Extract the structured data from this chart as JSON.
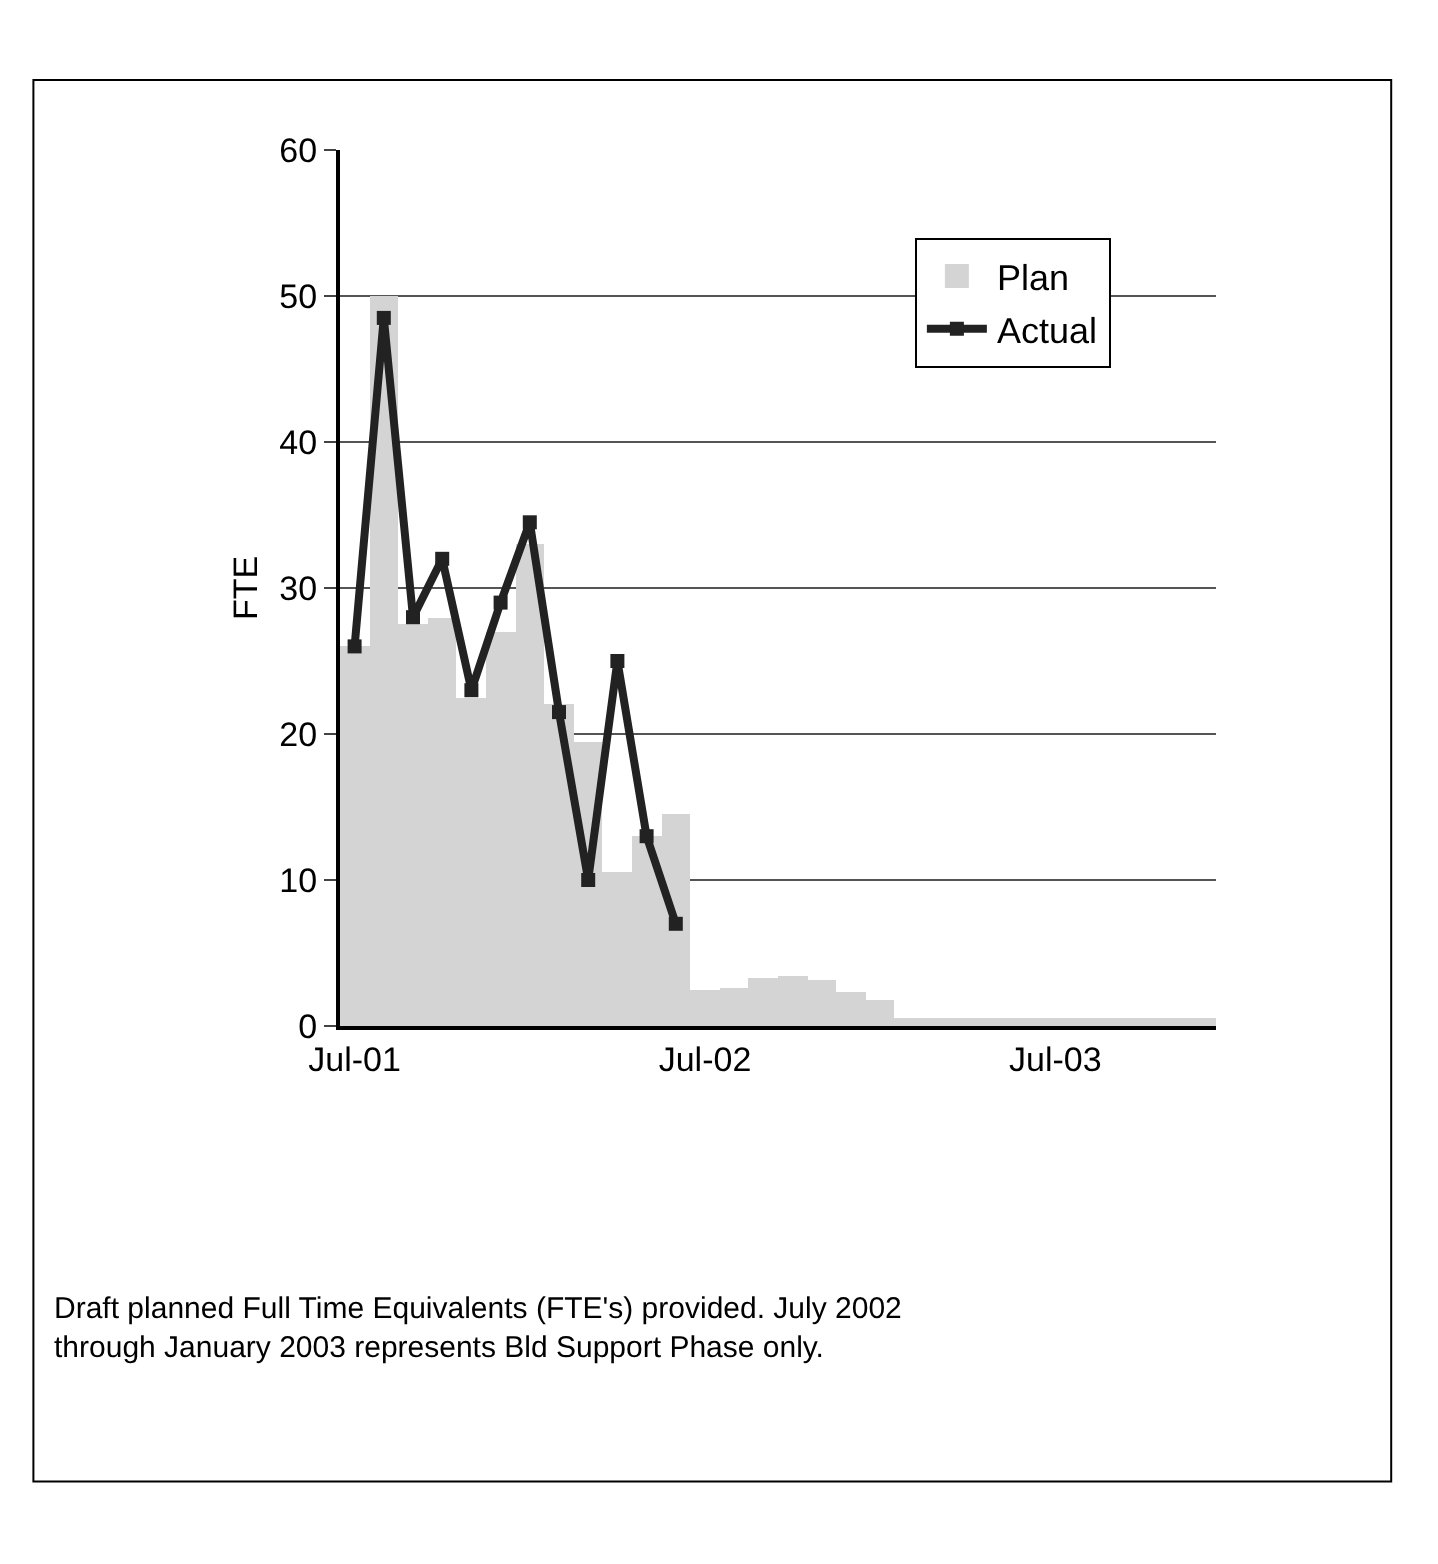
{
  "chart_data": {
    "type": "bar",
    "ylabel": "FTE",
    "categories": [
      "Jul-01",
      null,
      null,
      null,
      null,
      null,
      null,
      null,
      null,
      null,
      null,
      null,
      "Jul-02",
      null,
      null,
      null,
      null,
      null,
      null,
      null,
      null,
      null,
      null,
      null,
      "Jul-03",
      null,
      null,
      null,
      null,
      null
    ],
    "series": [
      {
        "name": "Plan",
        "color": "#d4d4d4",
        "values": [
          26,
          50,
          27.5,
          28,
          22.5,
          27,
          33,
          22,
          19.5,
          10.5,
          13,
          14.5,
          2.5,
          2.6,
          3.3,
          3.4,
          3.1,
          2.3,
          1.8,
          0.5,
          0.5,
          0.5,
          0.5,
          0.5,
          0.5,
          0.5,
          0.5,
          0.5,
          0.5,
          0.5
        ]
      },
      {
        "name": "Actual",
        "type": "line",
        "color": "#222222",
        "marker": "square",
        "values": [
          26,
          48.5,
          28,
          32,
          23,
          29,
          34.5,
          21.5,
          10,
          25,
          13,
          7,
          null,
          null,
          null,
          null,
          null,
          null,
          null,
          null,
          null,
          null,
          null,
          null,
          null,
          null,
          null,
          null,
          null,
          null
        ]
      }
    ],
    "ylim": [
      0,
      60
    ],
    "yticks": [
      0,
      10,
      20,
      30,
      40,
      50,
      60
    ],
    "grid": "y",
    "legend": "top right",
    "annotations": [
      "Draft planned Full Time Equivalents (FTE's) provided. July 2002 through January 2003 represents Bld Support Phase only."
    ]
  }
}
